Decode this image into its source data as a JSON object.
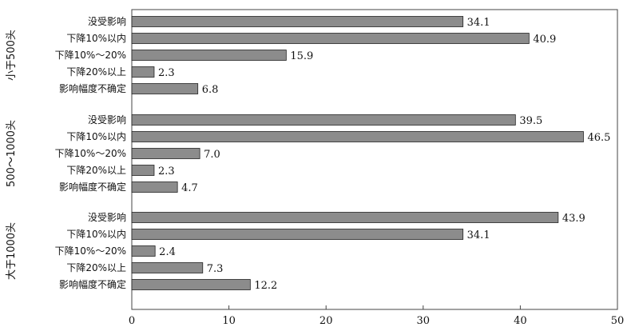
{
  "chart_data": {
    "type": "bar",
    "orientation": "horizontal",
    "title": "",
    "xlabel": "",
    "ylabel": "",
    "xlim": [
      0,
      50
    ],
    "xticks": [
      0,
      10,
      20,
      30,
      40,
      50
    ],
    "grid": false,
    "bar_color": "#8c8c8c",
    "groups": [
      {
        "name": "小于500头",
        "categories": [
          "没受影响",
          "下降10%以内",
          "下降10%～20%",
          "下降20%以上",
          "影响幅度不确定"
        ],
        "values": [
          34.1,
          40.9,
          15.9,
          2.3,
          6.8
        ],
        "value_labels": [
          "34.1",
          "40.9",
          "15.9",
          "2.3",
          "6.8"
        ]
      },
      {
        "name": "500～1000头",
        "categories": [
          "没受影响",
          "下降10%以内",
          "下降10%～20%",
          "下降20%以上",
          "影响幅度不确定"
        ],
        "values": [
          39.5,
          46.5,
          7.0,
          2.3,
          4.7
        ],
        "value_labels": [
          "39.5",
          "46.5",
          "7.0",
          "2.3",
          "4.7"
        ]
      },
      {
        "name": "大于1000头",
        "categories": [
          "没受影响",
          "下降10%以内",
          "下降10%～20%",
          "下降20%以上",
          "影响幅度不确定"
        ],
        "values": [
          43.9,
          34.1,
          2.4,
          7.3,
          12.2
        ],
        "value_labels": [
          "43.9",
          "34.1",
          "2.4",
          "7.3",
          "12.2"
        ]
      }
    ]
  }
}
